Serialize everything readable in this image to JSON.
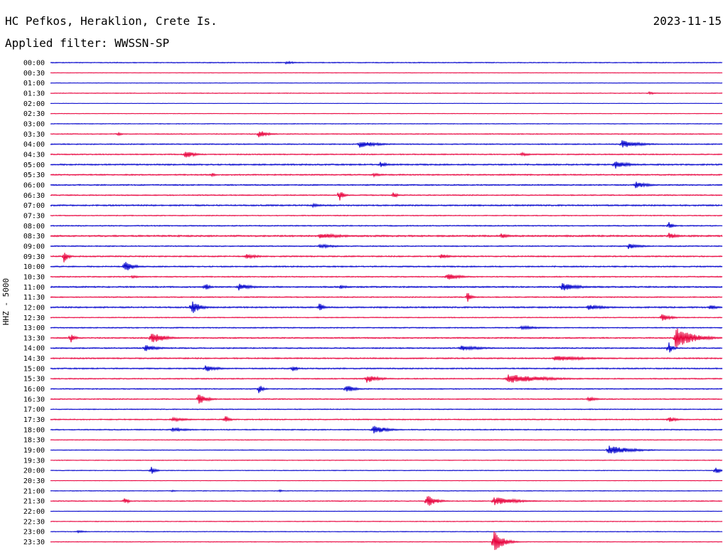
{
  "header": {
    "station": "HC Pefkos, Heraklion, Crete Is.",
    "date": "2023-11-15",
    "filter": "Applied filter: WWSSN-SP"
  },
  "chart_data": {
    "type": "line",
    "title": "HC Pefkos, Heraklion, Crete Is.",
    "ylabel": "HHZ - 5000",
    "rows": [
      "00:00",
      "00:30",
      "01:00",
      "01:30",
      "02:00",
      "02:30",
      "03:00",
      "03:30",
      "04:00",
      "04:30",
      "05:00",
      "05:30",
      "06:00",
      "06:30",
      "07:00",
      "07:30",
      "08:00",
      "08:30",
      "09:00",
      "09:30",
      "10:00",
      "10:30",
      "11:00",
      "11:30",
      "12:00",
      "12:30",
      "13:00",
      "13:30",
      "14:00",
      "14:30",
      "15:00",
      "15:30",
      "16:00",
      "16:30",
      "17:00",
      "17:30",
      "18:00",
      "18:30",
      "19:00",
      "19:30",
      "20:00",
      "20:30",
      "21:00",
      "21:30",
      "22:00",
      "22:30",
      "23:00",
      "23:30"
    ],
    "series_colors": [
      "#0000cc",
      "#e8003c"
    ],
    "noise": [
      0.5,
      0.3,
      0.3,
      0.4,
      0.2,
      0.3,
      0.4,
      0.5,
      0.6,
      0.6,
      0.8,
      0.7,
      0.7,
      0.6,
      0.8,
      0.5,
      0.6,
      0.9,
      0.6,
      0.7,
      0.7,
      0.6,
      0.8,
      0.6,
      0.8,
      0.5,
      0.6,
      0.7,
      0.7,
      0.7,
      0.7,
      0.6,
      0.6,
      0.6,
      0.5,
      0.6,
      0.6,
      0.4,
      0.4,
      0.4,
      0.4,
      0.3,
      0.4,
      0.5,
      0.3,
      0.4,
      0.4,
      0.4
    ],
    "events": [
      {
        "row": 0,
        "t": 0.35,
        "amp": 2,
        "dur": 0.03
      },
      {
        "row": 3,
        "t": 0.89,
        "amp": 2,
        "dur": 0.02
      },
      {
        "row": 7,
        "t": 0.1,
        "amp": 3,
        "dur": 0.01
      },
      {
        "row": 7,
        "t": 0.31,
        "amp": 6,
        "dur": 0.02
      },
      {
        "row": 8,
        "t": 0.46,
        "amp": 5,
        "dur": 0.04
      },
      {
        "row": 8,
        "t": 0.85,
        "amp": 6,
        "dur": 0.04
      },
      {
        "row": 9,
        "t": 0.2,
        "amp": 7,
        "dur": 0.02
      },
      {
        "row": 9,
        "t": 0.7,
        "amp": 3,
        "dur": 0.02
      },
      {
        "row": 10,
        "t": 0.49,
        "amp": 4,
        "dur": 0.02
      },
      {
        "row": 10,
        "t": 0.84,
        "amp": 6,
        "dur": 0.03
      },
      {
        "row": 11,
        "t": 0.24,
        "amp": 3,
        "dur": 0.01
      },
      {
        "row": 11,
        "t": 0.48,
        "amp": 3,
        "dur": 0.02
      },
      {
        "row": 12,
        "t": 0.87,
        "amp": 5,
        "dur": 0.03
      },
      {
        "row": 13,
        "t": 0.43,
        "amp": 9,
        "dur": 0.01
      },
      {
        "row": 13,
        "t": 0.51,
        "amp": 5,
        "dur": 0.01
      },
      {
        "row": 14,
        "t": 0.39,
        "amp": 3,
        "dur": 0.02
      },
      {
        "row": 16,
        "t": 0.92,
        "amp": 6,
        "dur": 0.01
      },
      {
        "row": 17,
        "t": 0.4,
        "amp": 4,
        "dur": 0.06
      },
      {
        "row": 17,
        "t": 0.67,
        "amp": 4,
        "dur": 0.02
      },
      {
        "row": 17,
        "t": 0.92,
        "amp": 5,
        "dur": 0.02
      },
      {
        "row": 18,
        "t": 0.4,
        "amp": 3,
        "dur": 0.04
      },
      {
        "row": 18,
        "t": 0.86,
        "amp": 4,
        "dur": 0.03
      },
      {
        "row": 19,
        "t": 0.02,
        "amp": 9,
        "dur": 0.01
      },
      {
        "row": 19,
        "t": 0.29,
        "amp": 4,
        "dur": 0.03
      },
      {
        "row": 19,
        "t": 0.58,
        "amp": 4,
        "dur": 0.02
      },
      {
        "row": 20,
        "t": 0.11,
        "amp": 9,
        "dur": 0.02
      },
      {
        "row": 21,
        "t": 0.12,
        "amp": 2,
        "dur": 0.03
      },
      {
        "row": 21,
        "t": 0.59,
        "amp": 5,
        "dur": 0.03
      },
      {
        "row": 22,
        "t": 0.23,
        "amp": 6,
        "dur": 0.01
      },
      {
        "row": 22,
        "t": 0.28,
        "amp": 5,
        "dur": 0.03
      },
      {
        "row": 22,
        "t": 0.43,
        "amp": 3,
        "dur": 0.02
      },
      {
        "row": 22,
        "t": 0.76,
        "amp": 6,
        "dur": 0.04
      },
      {
        "row": 23,
        "t": 0.62,
        "amp": 8,
        "dur": 0.01
      },
      {
        "row": 24,
        "t": 0.21,
        "amp": 10,
        "dur": 0.02
      },
      {
        "row": 24,
        "t": 0.4,
        "amp": 7,
        "dur": 0.01
      },
      {
        "row": 24,
        "t": 0.8,
        "amp": 4,
        "dur": 0.04
      },
      {
        "row": 24,
        "t": 0.98,
        "amp": 4,
        "dur": 0.02
      },
      {
        "row": 25,
        "t": 0.91,
        "amp": 6,
        "dur": 0.02
      },
      {
        "row": 26,
        "t": 0.7,
        "amp": 3,
        "dur": 0.05
      },
      {
        "row": 27,
        "t": 0.03,
        "amp": 7,
        "dur": 0.01
      },
      {
        "row": 27,
        "t": 0.15,
        "amp": 9,
        "dur": 0.03
      },
      {
        "row": 27,
        "t": 0.93,
        "amp": 16,
        "dur": 0.04
      },
      {
        "row": 28,
        "t": 0.14,
        "amp": 5,
        "dur": 0.03
      },
      {
        "row": 28,
        "t": 0.61,
        "amp": 4,
        "dur": 0.05
      },
      {
        "row": 28,
        "t": 0.92,
        "amp": 9,
        "dur": 0.01
      },
      {
        "row": 29,
        "t": 0.75,
        "amp": 4,
        "dur": 0.08
      },
      {
        "row": 30,
        "t": 0.23,
        "amp": 5,
        "dur": 0.03
      },
      {
        "row": 30,
        "t": 0.36,
        "amp": 6,
        "dur": 0.01
      },
      {
        "row": 31,
        "t": 0.47,
        "amp": 6,
        "dur": 0.03
      },
      {
        "row": 31,
        "t": 0.68,
        "amp": 7,
        "dur": 0.08
      },
      {
        "row": 32,
        "t": 0.31,
        "amp": 7,
        "dur": 0.01
      },
      {
        "row": 32,
        "t": 0.44,
        "amp": 6,
        "dur": 0.02
      },
      {
        "row": 33,
        "t": 0.22,
        "amp": 8,
        "dur": 0.02
      },
      {
        "row": 33,
        "t": 0.8,
        "amp": 4,
        "dur": 0.02
      },
      {
        "row": 35,
        "t": 0.18,
        "amp": 3,
        "dur": 0.04
      },
      {
        "row": 35,
        "t": 0.26,
        "amp": 7,
        "dur": 0.01
      },
      {
        "row": 35,
        "t": 0.92,
        "amp": 4,
        "dur": 0.02
      },
      {
        "row": 36,
        "t": 0.18,
        "amp": 3,
        "dur": 0.04
      },
      {
        "row": 36,
        "t": 0.48,
        "amp": 7,
        "dur": 0.03
      },
      {
        "row": 38,
        "t": 0.83,
        "amp": 7,
        "dur": 0.05
      },
      {
        "row": 40,
        "t": 0.15,
        "amp": 6,
        "dur": 0.01
      },
      {
        "row": 40,
        "t": 0.99,
        "amp": 6,
        "dur": 0.01
      },
      {
        "row": 42,
        "t": 0.18,
        "amp": 2,
        "dur": 0.01
      },
      {
        "row": 42,
        "t": 0.34,
        "amp": 2,
        "dur": 0.01
      },
      {
        "row": 43,
        "t": 0.11,
        "amp": 5,
        "dur": 0.01
      },
      {
        "row": 43,
        "t": 0.56,
        "amp": 10,
        "dur": 0.02
      },
      {
        "row": 43,
        "t": 0.66,
        "amp": 6,
        "dur": 0.05
      },
      {
        "row": 46,
        "t": 0.04,
        "amp": 2,
        "dur": 0.02
      },
      {
        "row": 47,
        "t": 0.66,
        "amp": 18,
        "dur": 0.02
      }
    ]
  }
}
